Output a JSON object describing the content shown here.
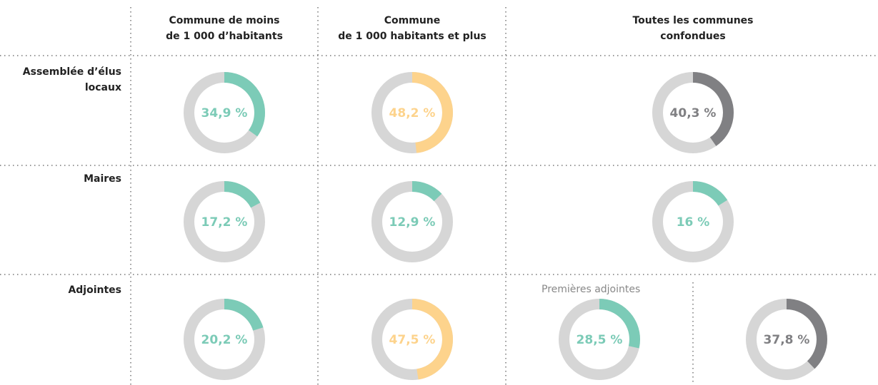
{
  "columns": [
    [
      "Commune de moins",
      "de 1 000 d’habitants"
    ],
    [
      "Commune",
      "de 1 000 habitants et plus"
    ],
    [
      "Toutes les communes confondues"
    ]
  ],
  "rows": [
    {
      "label": [
        "Assemblée d’élus",
        "locaux"
      ],
      "cells": [
        {
          "value": 34.9,
          "value_label": "34,9 %",
          "color": "#7ccbb7"
        },
        {
          "value": 48.2,
          "value_label": "48,2 %",
          "color": "#fdd38c"
        },
        {
          "value": 40.3,
          "value_label": "40,3 %",
          "color": "#808083"
        }
      ]
    },
    {
      "label": [
        "Maires"
      ],
      "cells": [
        {
          "value": 17.2,
          "value_label": "17,2 %",
          "color": "#7ccbb7"
        },
        {
          "value": 12.9,
          "value_label": "12,9 %",
          "color": "#7ccbb7"
        },
        {
          "value": 16,
          "value_label": "16 %",
          "color": "#7ccbb7"
        }
      ]
    },
    {
      "label": [
        "Adjointes"
      ],
      "cells": [
        {
          "value": 20.2,
          "value_label": "20,2 %",
          "color": "#7ccbb7"
        },
        {
          "value": 47.5,
          "value_label": "47,5 %",
          "color": "#fdd38c"
        },
        {
          "value": 28.5,
          "value_label": "28,5 %",
          "color": "#7ccbb7"
        },
        {
          "value": 37.8,
          "value_label": "37,8 %",
          "color": "#808083"
        }
      ]
    }
  ],
  "annotation": "Premières adjointes",
  "track_color": "#d6d6d6"
}
